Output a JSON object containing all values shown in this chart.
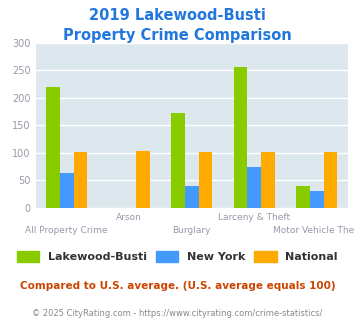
{
  "title_line1": "2019 Lakewood-Busti",
  "title_line2": "Property Crime Comparison",
  "title_color": "#2277dd",
  "categories": [
    "All Property Crime",
    "Arson",
    "Burglary",
    "Larceny & Theft",
    "Motor Vehicle Theft"
  ],
  "series": {
    "Lakewood-Busti": [
      220,
      0,
      172,
      257,
      39
    ],
    "New York": [
      64,
      0,
      40,
      75,
      31
    ],
    "National": [
      102,
      103,
      102,
      102,
      102
    ]
  },
  "colors": {
    "Lakewood-Busti": "#88cc00",
    "New York": "#4499ff",
    "National": "#ffaa00"
  },
  "ylim": [
    0,
    300
  ],
  "yticks": [
    0,
    50,
    100,
    150,
    200,
    250,
    300
  ],
  "plot_bg_color": "#dde8ee",
  "grid_color": "#ffffff",
  "footnote1": "Compared to U.S. average. (U.S. average equals 100)",
  "footnote2": "© 2025 CityRating.com - https://www.cityrating.com/crime-statistics/",
  "footnote1_color": "#cc4400",
  "footnote2_color": "#888888",
  "tick_label_color": "#9999aa",
  "xlabel_color": "#9999aa",
  "bar_width": 0.22
}
